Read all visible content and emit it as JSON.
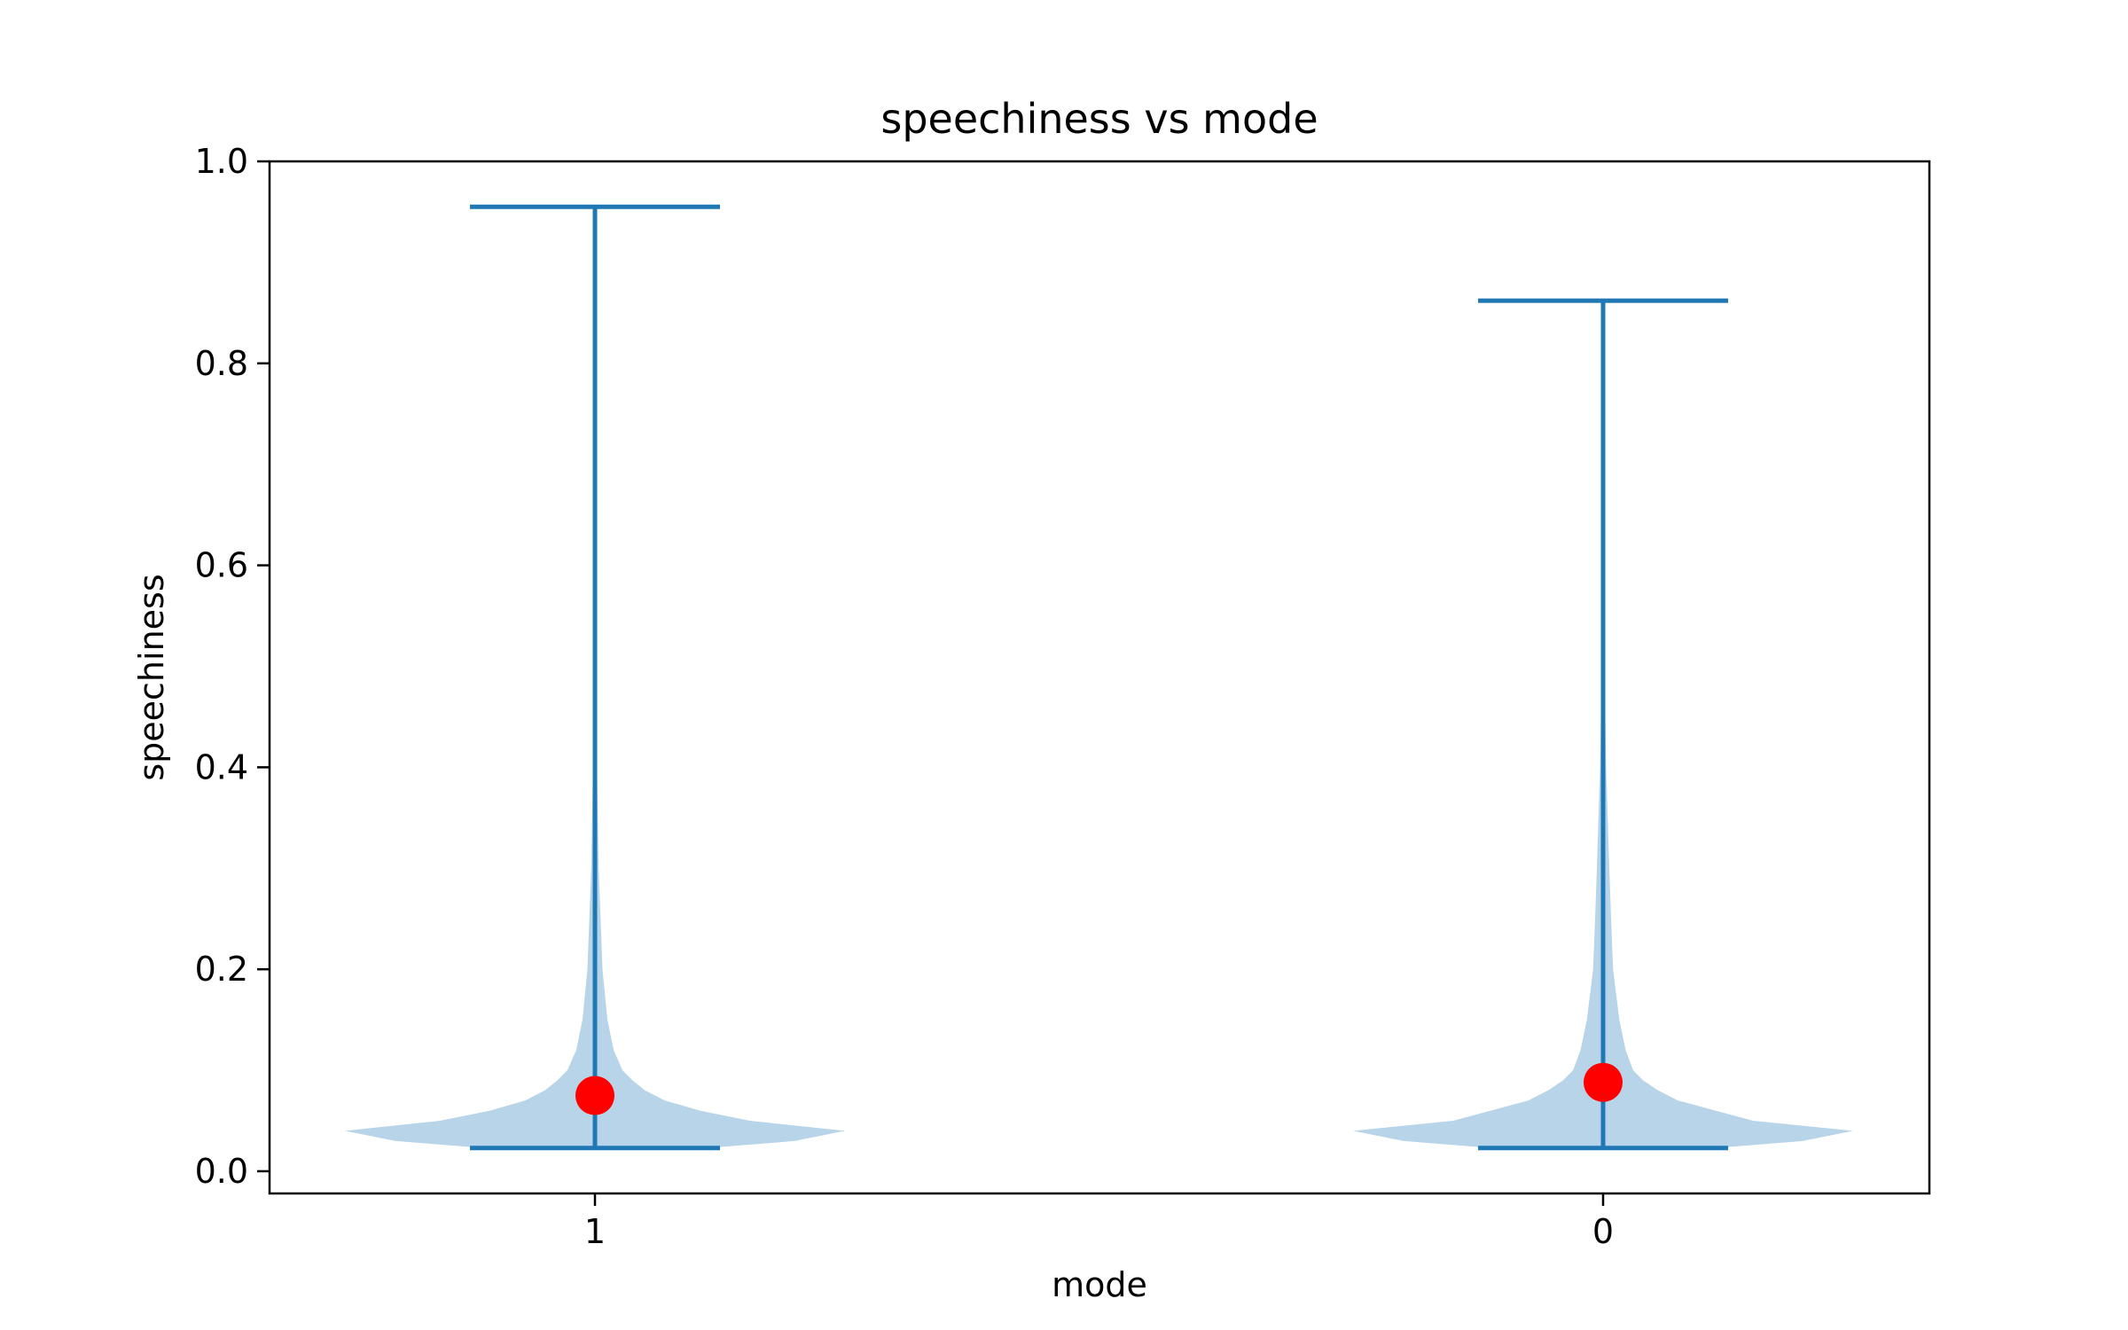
{
  "chart_data": {
    "type": "violin",
    "title": "speechiness vs mode",
    "xlabel": "mode",
    "ylabel": "speechiness",
    "ylim": [
      -0.022,
      1.0
    ],
    "yticks": [
      "0.0",
      "0.2",
      "0.4",
      "0.6",
      "0.8",
      "1.0"
    ],
    "categories": [
      "1",
      "0"
    ],
    "violins": [
      {
        "category": "1",
        "min": 0.023,
        "max": 0.955,
        "mean_marker": 0.075,
        "profile": [
          [
            0.023,
            0.45
          ],
          [
            0.03,
            0.8
          ],
          [
            0.04,
            1.0
          ],
          [
            0.05,
            0.62
          ],
          [
            0.06,
            0.42
          ],
          [
            0.07,
            0.28
          ],
          [
            0.08,
            0.2
          ],
          [
            0.09,
            0.15
          ],
          [
            0.1,
            0.11
          ],
          [
            0.12,
            0.075
          ],
          [
            0.15,
            0.05
          ],
          [
            0.2,
            0.03
          ],
          [
            0.3,
            0.015
          ],
          [
            0.4,
            0.008
          ],
          [
            0.5,
            0.004
          ],
          [
            0.7,
            0.002
          ],
          [
            0.955,
            0.0
          ]
        ]
      },
      {
        "category": "0",
        "min": 0.023,
        "max": 0.862,
        "mean_marker": 0.088,
        "profile": [
          [
            0.023,
            0.45
          ],
          [
            0.03,
            0.8
          ],
          [
            0.04,
            1.0
          ],
          [
            0.05,
            0.6
          ],
          [
            0.06,
            0.45
          ],
          [
            0.07,
            0.3
          ],
          [
            0.08,
            0.22
          ],
          [
            0.09,
            0.16
          ],
          [
            0.1,
            0.12
          ],
          [
            0.12,
            0.09
          ],
          [
            0.15,
            0.065
          ],
          [
            0.2,
            0.04
          ],
          [
            0.25,
            0.032
          ],
          [
            0.3,
            0.025
          ],
          [
            0.4,
            0.012
          ],
          [
            0.5,
            0.005
          ],
          [
            0.7,
            0.002
          ],
          [
            0.862,
            0.0
          ]
        ]
      }
    ],
    "colors": {
      "body": "#b8d4e8",
      "line": "#1f77b4",
      "marker": "#ff0000"
    }
  }
}
